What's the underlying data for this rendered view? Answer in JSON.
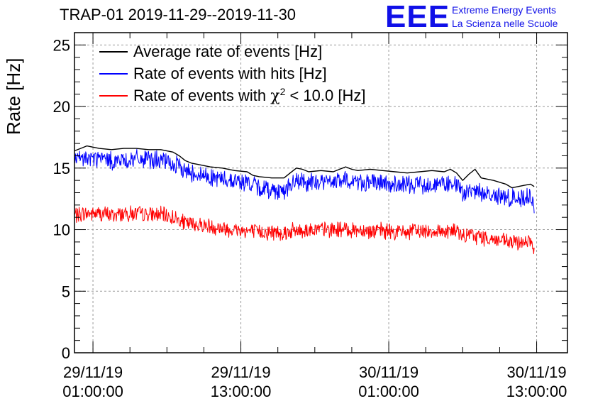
{
  "title": "TRAP-01 2019-11-29--2019-11-30",
  "logo": {
    "mark": "EEE",
    "line1": "Extreme Energy Events",
    "line2": "La Scienza nelle Scuole",
    "color": "#1010e8"
  },
  "legend": [
    {
      "label": "Average rate of events [Hz]",
      "color": "#000000"
    },
    {
      "label": "Rate of events with hits [Hz]",
      "color": "#0000ff"
    },
    {
      "label_prefix": "Rate of events with ",
      "chi": "χ",
      "sup": "2",
      "label_suffix": " < 10.0 [Hz]",
      "color": "#ff0000"
    }
  ],
  "chart_data": {
    "type": "line",
    "title": "TRAP-01 2019-11-29--2019-11-30",
    "ylabel": "Rate [Hz]",
    "xlabel": "",
    "ylim": [
      0,
      26
    ],
    "yticks": [
      0,
      5,
      10,
      15,
      20,
      25
    ],
    "xlim_hours_from_2019_11_28_23_30": [
      0,
      40
    ],
    "xticks": [
      {
        "t": 1.5,
        "line1": "29/11/19",
        "line2": "01:00:00"
      },
      {
        "t": 13.5,
        "line1": "29/11/19",
        "line2": "13:00:00"
      },
      {
        "t": 25.5,
        "line1": "30/11/19",
        "line2": "01:00:00"
      },
      {
        "t": 37.5,
        "line1": "30/11/19",
        "line2": "13:00:00"
      }
    ],
    "grid": true,
    "legend_position": "top-left",
    "series": [
      {
        "name": "Average rate of events [Hz]",
        "color": "#000000",
        "noise": 0.0,
        "points": [
          [
            0.0,
            16.4
          ],
          [
            0.5,
            16.6
          ],
          [
            1.0,
            16.8
          ],
          [
            1.5,
            16.7
          ],
          [
            2.0,
            16.6
          ],
          [
            3.0,
            16.5
          ],
          [
            4.0,
            16.6
          ],
          [
            5.0,
            16.6
          ],
          [
            6.0,
            16.5
          ],
          [
            7.0,
            16.5
          ],
          [
            8.0,
            16.3
          ],
          [
            8.5,
            16.0
          ],
          [
            9.0,
            15.6
          ],
          [
            9.5,
            15.4
          ],
          [
            10.0,
            15.3
          ],
          [
            11.0,
            15.1
          ],
          [
            12.0,
            15.0
          ],
          [
            13.0,
            14.8
          ],
          [
            14.0,
            14.7
          ],
          [
            14.5,
            14.4
          ],
          [
            15.0,
            14.3
          ],
          [
            16.0,
            14.2
          ],
          [
            17.0,
            14.2
          ],
          [
            17.5,
            14.6
          ],
          [
            18.0,
            15.0
          ],
          [
            18.5,
            14.9
          ],
          [
            19.0,
            14.7
          ],
          [
            20.0,
            14.8
          ],
          [
            21.0,
            14.7
          ],
          [
            21.5,
            14.9
          ],
          [
            22.0,
            15.1
          ],
          [
            22.5,
            14.9
          ],
          [
            23.0,
            14.8
          ],
          [
            24.0,
            14.9
          ],
          [
            25.0,
            14.8
          ],
          [
            26.0,
            14.7
          ],
          [
            27.0,
            14.6
          ],
          [
            28.0,
            14.7
          ],
          [
            29.0,
            14.8
          ],
          [
            30.0,
            14.7
          ],
          [
            30.5,
            14.9
          ],
          [
            31.0,
            14.6
          ],
          [
            31.5,
            14.0
          ],
          [
            32.0,
            14.5
          ],
          [
            32.5,
            14.9
          ],
          [
            33.0,
            14.2
          ],
          [
            34.0,
            14.0
          ],
          [
            35.0,
            13.7
          ],
          [
            35.5,
            13.4
          ],
          [
            36.0,
            13.5
          ],
          [
            36.5,
            13.6
          ],
          [
            37.0,
            13.7
          ],
          [
            37.3,
            13.5
          ]
        ]
      },
      {
        "name": "Rate of events with hits [Hz]",
        "color": "#0000ff",
        "noise": 0.85,
        "points": [
          [
            0.0,
            15.6
          ],
          [
            1.0,
            15.8
          ],
          [
            2.0,
            15.8
          ],
          [
            3.0,
            15.6
          ],
          [
            4.0,
            15.6
          ],
          [
            5.0,
            15.7
          ],
          [
            6.0,
            15.7
          ],
          [
            7.0,
            15.6
          ],
          [
            8.0,
            15.3
          ],
          [
            8.5,
            15.1
          ],
          [
            9.0,
            14.8
          ],
          [
            10.0,
            14.5
          ],
          [
            11.0,
            14.3
          ],
          [
            12.0,
            14.1
          ],
          [
            13.0,
            14.0
          ],
          [
            14.0,
            13.8
          ],
          [
            15.0,
            13.4
          ],
          [
            16.0,
            13.2
          ],
          [
            17.0,
            13.2
          ],
          [
            18.0,
            13.9
          ],
          [
            19.0,
            13.8
          ],
          [
            20.0,
            13.9
          ],
          [
            21.0,
            13.9
          ],
          [
            22.0,
            14.0
          ],
          [
            23.0,
            13.9
          ],
          [
            24.0,
            13.8
          ],
          [
            25.0,
            13.7
          ],
          [
            26.0,
            13.6
          ],
          [
            27.0,
            13.6
          ],
          [
            28.0,
            13.7
          ],
          [
            29.0,
            13.7
          ],
          [
            30.0,
            13.7
          ],
          [
            31.0,
            13.7
          ],
          [
            31.5,
            12.8
          ],
          [
            32.0,
            13.2
          ],
          [
            33.0,
            13.0
          ],
          [
            34.0,
            12.8
          ],
          [
            35.0,
            12.6
          ],
          [
            36.0,
            12.5
          ],
          [
            36.5,
            12.7
          ],
          [
            37.0,
            12.8
          ],
          [
            37.3,
            11.6
          ]
        ]
      },
      {
        "name": "Rate of events with χ2 < 10.0 [Hz]",
        "color": "#ff0000",
        "noise": 0.75,
        "points": [
          [
            0.0,
            11.2
          ],
          [
            1.0,
            11.3
          ],
          [
            2.0,
            11.3
          ],
          [
            3.0,
            11.2
          ],
          [
            4.0,
            11.3
          ],
          [
            5.0,
            11.3
          ],
          [
            6.0,
            11.2
          ],
          [
            7.0,
            11.2
          ],
          [
            8.0,
            11.0
          ],
          [
            9.0,
            10.5
          ],
          [
            10.0,
            10.4
          ],
          [
            11.0,
            10.3
          ],
          [
            12.0,
            10.1
          ],
          [
            13.0,
            10.0
          ],
          [
            14.0,
            9.9
          ],
          [
            15.0,
            9.8
          ],
          [
            16.0,
            9.8
          ],
          [
            17.0,
            9.8
          ],
          [
            18.0,
            9.9
          ],
          [
            19.0,
            10.0
          ],
          [
            20.0,
            10.0
          ],
          [
            21.0,
            10.0
          ],
          [
            22.0,
            10.0
          ],
          [
            23.0,
            10.0
          ],
          [
            24.0,
            9.9
          ],
          [
            25.0,
            9.9
          ],
          [
            26.0,
            9.8
          ],
          [
            27.0,
            9.8
          ],
          [
            28.0,
            9.9
          ],
          [
            29.0,
            9.9
          ],
          [
            30.0,
            9.9
          ],
          [
            31.0,
            9.9
          ],
          [
            31.5,
            9.3
          ],
          [
            32.0,
            9.6
          ],
          [
            33.0,
            9.4
          ],
          [
            34.0,
            9.2
          ],
          [
            35.0,
            9.0
          ],
          [
            36.0,
            8.9
          ],
          [
            36.5,
            9.1
          ],
          [
            37.0,
            9.0
          ],
          [
            37.3,
            8.2
          ]
        ]
      }
    ]
  }
}
